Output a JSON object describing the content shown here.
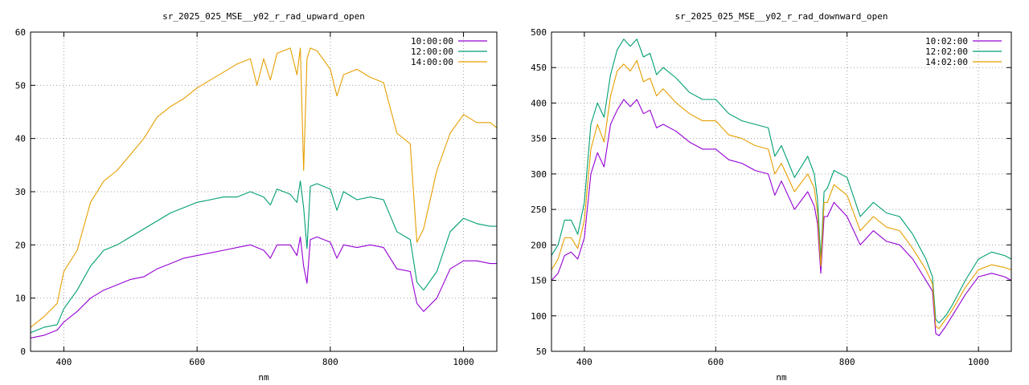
{
  "chart_data": [
    {
      "type": "line",
      "title": "sr_2025_025_MSE__y02_r_rad_upward_open",
      "xlabel": "nm",
      "ylabel": "",
      "xlim": [
        350,
        1050
      ],
      "ylim": [
        0,
        60
      ],
      "xticks": [
        400,
        600,
        800,
        1000
      ],
      "yticks": [
        0,
        10,
        20,
        30,
        40,
        50,
        60
      ],
      "grid": true,
      "legend_position": "top-right",
      "series": [
        {
          "name": "10:00:00",
          "color": "#9400d3",
          "x": [
            350,
            370,
            390,
            400,
            420,
            440,
            460,
            480,
            500,
            520,
            540,
            560,
            580,
            600,
            620,
            640,
            660,
            680,
            700,
            710,
            720,
            740,
            750,
            755,
            760,
            765,
            770,
            780,
            800,
            810,
            820,
            840,
            860,
            880,
            900,
            920,
            930,
            940,
            960,
            980,
            1000,
            1020,
            1040,
            1050
          ],
          "y": [
            2.5,
            3,
            4,
            5.5,
            7.5,
            10,
            11.5,
            12.5,
            13.5,
            14,
            15.5,
            16.5,
            17.5,
            18,
            18.5,
            19,
            19.5,
            20,
            19,
            17.5,
            20,
            20,
            18,
            21.5,
            16,
            12.8,
            21,
            21.5,
            20.5,
            17.5,
            20,
            19.5,
            20,
            19.5,
            15.5,
            15,
            9,
            7.5,
            10,
            15.5,
            17,
            17,
            16.5,
            16.5
          ]
        },
        {
          "name": "12:00:00",
          "color": "#009e73",
          "x": [
            350,
            370,
            390,
            400,
            420,
            440,
            460,
            480,
            500,
            520,
            540,
            560,
            580,
            600,
            620,
            640,
            660,
            680,
            700,
            710,
            720,
            740,
            750,
            755,
            760,
            765,
            770,
            780,
            800,
            810,
            820,
            840,
            860,
            880,
            900,
            920,
            930,
            940,
            960,
            980,
            1000,
            1020,
            1040,
            1050
          ],
          "y": [
            3.5,
            4.5,
            5,
            8,
            11.5,
            16,
            19,
            20,
            21.5,
            23,
            24.5,
            26,
            27,
            28,
            28.5,
            29,
            29,
            30,
            29,
            27.5,
            30.5,
            29.5,
            28,
            32,
            27,
            19.3,
            31,
            31.5,
            30.5,
            26.5,
            30,
            28.5,
            29,
            28.5,
            22.5,
            21,
            13,
            11.5,
            15,
            22.5,
            25,
            24,
            23.5,
            23.5
          ]
        },
        {
          "name": "14:00:00",
          "color": "#e69f00",
          "x": [
            350,
            370,
            390,
            400,
            420,
            440,
            460,
            480,
            500,
            520,
            540,
            560,
            580,
            600,
            620,
            640,
            660,
            680,
            690,
            700,
            710,
            720,
            740,
            750,
            755,
            760,
            765,
            770,
            780,
            800,
            810,
            820,
            840,
            860,
            880,
            900,
            910,
            920,
            930,
            940,
            960,
            980,
            1000,
            1020,
            1040,
            1050
          ],
          "y": [
            4.5,
            6.5,
            9,
            15,
            19,
            28,
            32,
            34,
            37,
            40,
            44,
            46,
            47.5,
            49.5,
            51,
            52.5,
            54,
            55,
            50,
            55,
            51,
            56,
            57,
            52,
            57,
            34,
            55,
            57,
            56.5,
            53,
            48,
            52,
            53,
            51.5,
            50.5,
            41,
            40,
            39,
            20.5,
            23,
            34,
            41,
            44.5,
            43,
            43,
            42
          ]
        }
      ]
    },
    {
      "type": "line",
      "title": "sr_2025_025_MSE__y02_r_rad_downward_open",
      "xlabel": "nm",
      "ylabel": "",
      "xlim": [
        350,
        1050
      ],
      "ylim": [
        50,
        500
      ],
      "xticks": [
        400,
        600,
        800,
        1000
      ],
      "yticks": [
        50,
        100,
        150,
        200,
        250,
        300,
        350,
        400,
        450,
        500
      ],
      "grid": true,
      "legend_position": "top-right",
      "series": [
        {
          "name": "10:02:00",
          "color": "#9400d3",
          "x": [
            350,
            360,
            370,
            380,
            390,
            400,
            410,
            420,
            430,
            440,
            450,
            460,
            470,
            480,
            490,
            500,
            510,
            520,
            540,
            560,
            580,
            600,
            620,
            640,
            660,
            680,
            690,
            700,
            720,
            740,
            750,
            755,
            760,
            765,
            770,
            780,
            800,
            820,
            840,
            860,
            880,
            900,
            920,
            930,
            935,
            940,
            950,
            960,
            980,
            1000,
            1020,
            1040,
            1050
          ],
          "y": [
            150,
            160,
            185,
            190,
            180,
            210,
            300,
            330,
            310,
            370,
            390,
            405,
            395,
            405,
            385,
            390,
            365,
            370,
            360,
            345,
            335,
            335,
            320,
            315,
            305,
            300,
            270,
            290,
            250,
            275,
            255,
            230,
            160,
            240,
            240,
            260,
            240,
            200,
            220,
            205,
            200,
            180,
            150,
            135,
            75,
            72,
            85,
            100,
            130,
            155,
            160,
            155,
            150
          ]
        },
        {
          "name": "12:02:00",
          "color": "#009e73",
          "x": [
            350,
            360,
            370,
            380,
            390,
            400,
            410,
            420,
            430,
            440,
            450,
            460,
            470,
            480,
            490,
            500,
            510,
            520,
            540,
            560,
            580,
            600,
            620,
            640,
            660,
            680,
            690,
            700,
            720,
            740,
            750,
            755,
            760,
            765,
            770,
            780,
            800,
            820,
            840,
            860,
            880,
            900,
            920,
            930,
            935,
            940,
            950,
            960,
            980,
            1000,
            1020,
            1040,
            1050
          ],
          "y": [
            185,
            200,
            235,
            235,
            215,
            260,
            370,
            400,
            380,
            440,
            475,
            490,
            480,
            490,
            465,
            470,
            440,
            450,
            435,
            415,
            405,
            405,
            385,
            375,
            370,
            365,
            325,
            340,
            295,
            325,
            300,
            265,
            180,
            275,
            280,
            305,
            295,
            240,
            260,
            245,
            240,
            215,
            180,
            155,
            95,
            90,
            100,
            115,
            150,
            180,
            190,
            185,
            180
          ]
        },
        {
          "name": "14:02:00",
          "color": "#e69f00",
          "x": [
            350,
            360,
            370,
            380,
            390,
            400,
            410,
            420,
            430,
            440,
            450,
            460,
            470,
            480,
            490,
            500,
            510,
            520,
            540,
            560,
            580,
            600,
            620,
            640,
            660,
            680,
            690,
            700,
            720,
            740,
            750,
            755,
            760,
            765,
            770,
            780,
            800,
            820,
            840,
            860,
            880,
            900,
            920,
            930,
            935,
            940,
            950,
            960,
            980,
            1000,
            1020,
            1040,
            1050
          ],
          "y": [
            165,
            180,
            210,
            210,
            195,
            235,
            335,
            370,
            345,
            410,
            445,
            455,
            445,
            460,
            430,
            435,
            410,
            420,
            400,
            385,
            375,
            375,
            355,
            350,
            340,
            335,
            300,
            315,
            275,
            300,
            280,
            245,
            170,
            260,
            260,
            285,
            270,
            220,
            240,
            225,
            220,
            195,
            165,
            145,
            85,
            82,
            95,
            108,
            140,
            165,
            172,
            168,
            165
          ]
        }
      ]
    }
  ]
}
